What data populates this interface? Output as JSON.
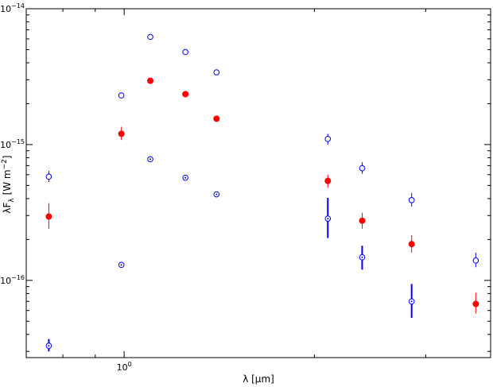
{
  "chart_data": {
    "type": "scatter",
    "title": "",
    "xlabel": {
      "base": "λ [",
      "mu": "μ",
      "rest": "m]"
    },
    "ylabel": {
      "lambda": "λF",
      "sub": "λ",
      "open": " [W m",
      "sup": "−2",
      "close": "]"
    },
    "xscale": "log",
    "yscale": "log",
    "xlim": [
      0.7,
      3.8
    ],
    "ylim": [
      2.7e-17,
      1e-14
    ],
    "x_ticks": [
      {
        "value": 1,
        "label": "10",
        "exp": "0"
      }
    ],
    "y_ticks": [
      {
        "value": 1e-16,
        "label": "10",
        "exp": "−16"
      },
      {
        "value": 1e-15,
        "label": "10",
        "exp": "−15"
      },
      {
        "value": 1e-14,
        "label": "10",
        "exp": "−14"
      }
    ],
    "grid": false,
    "series": [
      {
        "style": "open-circle",
        "color": "#0000ff",
        "points": [
          {
            "x": 0.76,
            "y": 5.8e-16,
            "err": [
              5.3e-16,
              6.4e-16
            ]
          },
          {
            "x": 0.99,
            "y": 2.3e-15,
            "err": null
          },
          {
            "x": 1.1,
            "y": 6.2e-15,
            "err": null
          },
          {
            "x": 1.25,
            "y": 4.8e-15,
            "err": null
          },
          {
            "x": 1.4,
            "y": 3.4e-15,
            "err": null
          },
          {
            "x": 2.1,
            "y": 1.1e-15,
            "err": [
              1e-15,
              1.2e-15
            ]
          },
          {
            "x": 2.38,
            "y": 6.7e-16,
            "err": [
              6.1e-16,
              7.4e-16
            ]
          },
          {
            "x": 2.85,
            "y": 3.9e-16,
            "err": [
              3.5e-16,
              4.4e-16
            ]
          },
          {
            "x": 3.6,
            "y": 1.4e-16,
            "err": [
              1.25e-16,
              1.6e-16
            ]
          }
        ]
      },
      {
        "style": "filled-circle",
        "color": "#ff0000",
        "points": [
          {
            "x": 0.76,
            "y": 2.95e-16,
            "err": [
              2.4e-16,
              3.7e-16
            ]
          },
          {
            "x": 0.99,
            "y": 1.2e-15,
            "err": [
              1.08e-15,
              1.35e-15
            ]
          },
          {
            "x": 1.1,
            "y": 2.95e-15,
            "err": null
          },
          {
            "x": 1.25,
            "y": 2.35e-15,
            "err": null
          },
          {
            "x": 1.4,
            "y": 1.55e-15,
            "err": [
              1.5e-15,
              1.62e-15
            ]
          },
          {
            "x": 2.1,
            "y": 5.4e-16,
            "err": [
              4.8e-16,
              6e-16
            ]
          },
          {
            "x": 2.38,
            "y": 2.75e-16,
            "err": [
              2.4e-16,
              3.15e-16
            ]
          },
          {
            "x": 2.85,
            "y": 1.85e-16,
            "err": [
              1.6e-16,
              2.15e-16
            ]
          },
          {
            "x": 3.6,
            "y": 6.7e-17,
            "err": [
              5.7e-17,
              8.1e-17
            ]
          }
        ]
      },
      {
        "style": "dotted-circle",
        "color": "#0000ff",
        "points": [
          {
            "x": 0.76,
            "y": 3.3e-17,
            "err": [
              3e-17,
              3.7e-17
            ]
          },
          {
            "x": 0.99,
            "y": 1.3e-16,
            "err": null
          },
          {
            "x": 1.1,
            "y": 7.8e-16,
            "err": null
          },
          {
            "x": 1.25,
            "y": 5.7e-16,
            "err": null
          },
          {
            "x": 1.4,
            "y": 4.3e-16,
            "err": null
          },
          {
            "x": 2.1,
            "y": 2.85e-16,
            "err": [
              2.05e-16,
              4.05e-16
            ]
          },
          {
            "x": 2.38,
            "y": 1.48e-16,
            "err": [
              1.2e-16,
              1.8e-16
            ]
          },
          {
            "x": 2.85,
            "y": 7e-17,
            "err": [
              5.3e-17,
              9.4e-17
            ]
          }
        ]
      }
    ]
  }
}
